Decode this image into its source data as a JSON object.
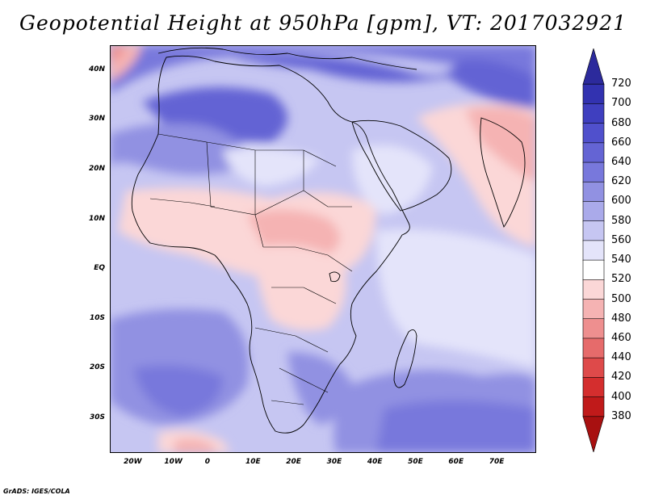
{
  "title": "Geopotential Height at 950hPa [gpm], VT: 2017032921",
  "footer": "GrADS: IGES/COLA",
  "map": {
    "projection": "lat-lon",
    "lon_range": [
      -25,
      80
    ],
    "lat_range": [
      -37,
      45
    ],
    "lat_ticks": [
      {
        "label": "40N",
        "lat": 40
      },
      {
        "label": "30N",
        "lat": 30
      },
      {
        "label": "20N",
        "lat": 20
      },
      {
        "label": "10N",
        "lat": 10
      },
      {
        "label": "EQ",
        "lat": 0
      },
      {
        "label": "10S",
        "lat": -10
      },
      {
        "label": "20S",
        "lat": -20
      },
      {
        "label": "30S",
        "lat": -30
      }
    ],
    "lon_ticks": [
      {
        "label": "20W",
        "lon": -20
      },
      {
        "label": "10W",
        "lon": -10
      },
      {
        "label": "0",
        "lon": 0
      },
      {
        "label": "10E",
        "lon": 10
      },
      {
        "label": "20E",
        "lon": 20
      },
      {
        "label": "30E",
        "lon": 30
      },
      {
        "label": "40E",
        "lon": 40
      },
      {
        "label": "50E",
        "lon": 50
      },
      {
        "label": "60E",
        "lon": 60
      },
      {
        "label": "70E",
        "lon": 70
      }
    ]
  },
  "colorbar": {
    "levels": [
      "720",
      "700",
      "680",
      "660",
      "640",
      "620",
      "600",
      "580",
      "560",
      "540",
      "520",
      "500",
      "480",
      "460",
      "440",
      "420",
      "400",
      "380"
    ],
    "colors": [
      "#2c2a9c",
      "#3232b0",
      "#3f3fbf",
      "#5050cc",
      "#6464d4",
      "#7878dc",
      "#9191e2",
      "#aaaaea",
      "#c6c6f2",
      "#e4e4fa",
      "#ffffff",
      "#fbd7d7",
      "#f5b3b3",
      "#ee8f8f",
      "#e66b6b",
      "#de4a4a",
      "#d42e2e",
      "#c01a1a",
      "#a81010"
    ]
  }
}
